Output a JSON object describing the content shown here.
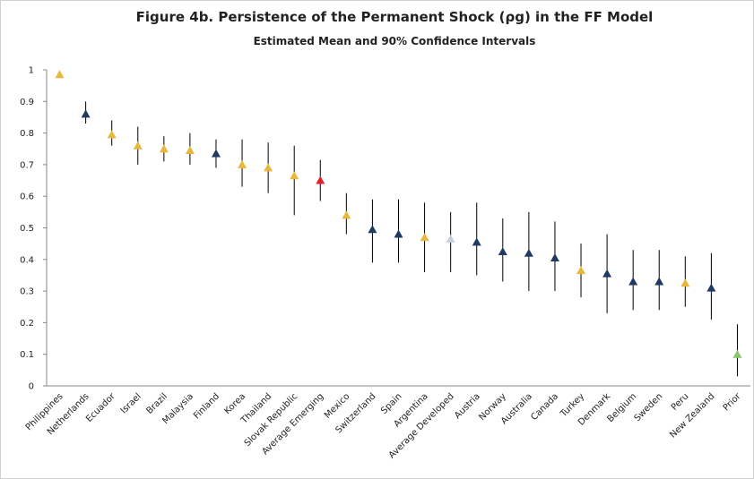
{
  "chart_data": {
    "type": "scatter",
    "title": "Figure 4b. Persistence of the Permanent Shock (ρg) in the FF Model",
    "subtitle": "Estimated Mean and 90% Confidence Intervals",
    "categories": [
      "Philippines",
      "Netherlands",
      "Ecuador",
      "Israel",
      "Brazil",
      "Malaysia",
      "Finland",
      "Korea",
      "Thailand",
      "Slovak Republic",
      "Average Emerging",
      "Mexico",
      "Switzerland",
      "Spain",
      "Argentina",
      "Average Developed",
      "Austria",
      "Norway",
      "Australia",
      "Canada",
      "Turkey",
      "Denmark",
      "Belgium",
      "Sweden",
      "Peru",
      "New Zealand",
      "Prior"
    ],
    "values": [
      0.985,
      0.86,
      0.795,
      0.76,
      0.75,
      0.745,
      0.735,
      0.7,
      0.69,
      0.665,
      0.65,
      0.54,
      0.495,
      0.48,
      0.47,
      0.465,
      0.455,
      0.425,
      0.42,
      0.405,
      0.365,
      0.355,
      0.33,
      0.33,
      0.325,
      0.31,
      0.1
    ],
    "lows": [
      null,
      0.83,
      0.76,
      0.7,
      0.71,
      0.7,
      0.69,
      0.63,
      0.61,
      0.54,
      0.585,
      0.48,
      0.39,
      0.39,
      0.36,
      0.36,
      0.35,
      0.33,
      0.3,
      0.3,
      0.28,
      0.23,
      0.24,
      0.24,
      0.25,
      0.21,
      0.03
    ],
    "highs": [
      null,
      0.9,
      0.84,
      0.82,
      0.79,
      0.8,
      0.78,
      0.78,
      0.77,
      0.76,
      0.715,
      0.61,
      0.59,
      0.59,
      0.58,
      0.55,
      0.58,
      0.53,
      0.55,
      0.52,
      0.45,
      0.48,
      0.43,
      0.43,
      0.41,
      0.42,
      0.195
    ],
    "colors": [
      "#e8b83c",
      "#1f3a63",
      "#e8b83c",
      "#e8b83c",
      "#e8b83c",
      "#e8b83c",
      "#1f3a63",
      "#e8b83c",
      "#e8b83c",
      "#e8b83c",
      "#e3202a",
      "#e8b83c",
      "#1f3a63",
      "#1f3a63",
      "#e8b83c",
      "#c9cfe0",
      "#1f3a63",
      "#1f3a63",
      "#1f3a63",
      "#1f3a63",
      "#e8b83c",
      "#1f3a63",
      "#1f3a63",
      "#1f3a63",
      "#e8b83c",
      "#1f3a63",
      "#8cc56b"
    ],
    "ylim": [
      0,
      1
    ],
    "yticks": [
      0,
      0.1,
      0.2,
      0.3,
      0.4,
      0.5,
      0.6,
      0.7,
      0.8,
      0.9,
      1
    ],
    "grid": false
  }
}
